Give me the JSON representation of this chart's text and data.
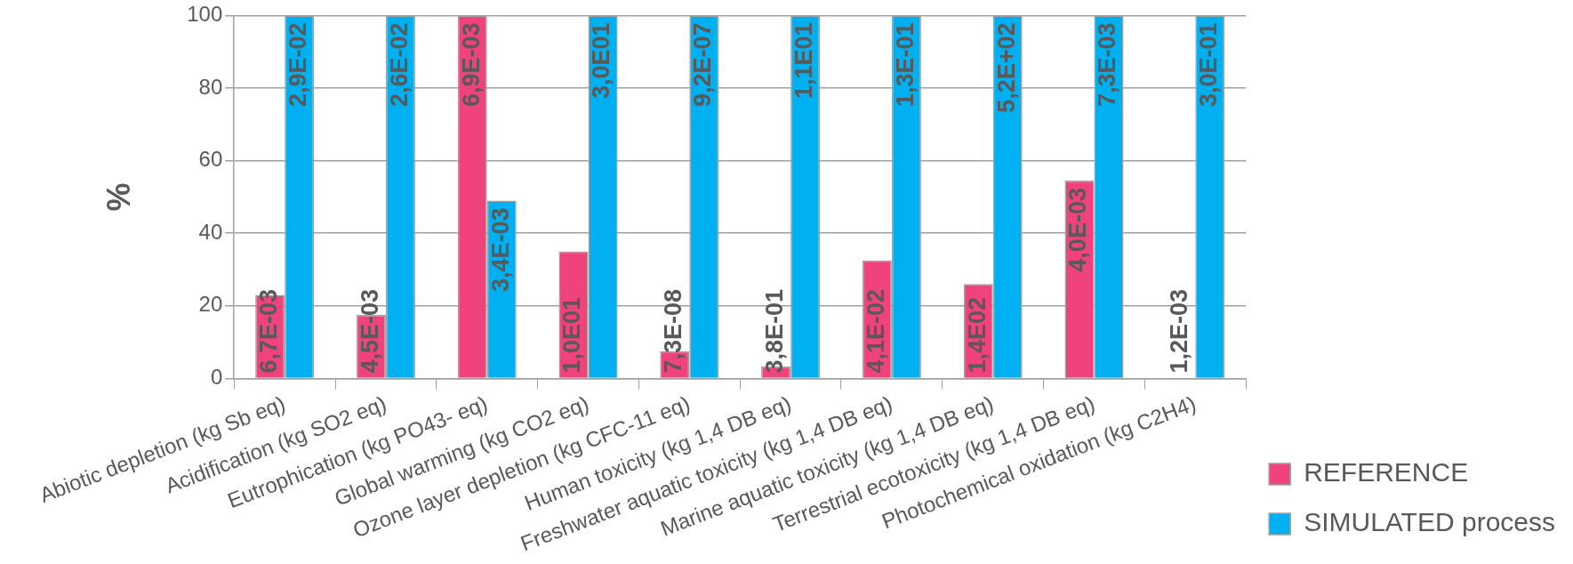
{
  "chart_data": {
    "type": "bar",
    "ylabel": "%",
    "categories": [
      "Abiotic depletion (kg Sb eq)",
      "Acidification (kg SO2 eq)",
      "Eutrophication (kg PO43- eq)",
      "Global warming (kg CO2 eq)",
      "Ozone layer depletion (kg CFC-11 eq)",
      "Human toxicity (kg 1,4 DB eq)",
      "Freshwater aquatic toxicity (kg 1,4 DB eq)",
      "Marine aquatic toxicity (kg 1,4 DB eq)",
      "Terrestrial ecotoxicity (kg 1,4 DB eq)",
      "Photochemical oxidation (kg C2H4)"
    ],
    "series": [
      {
        "name": "REFERENCE",
        "color": "#f0427d",
        "values": [
          23,
          17.5,
          100,
          35,
          7.5,
          3.3,
          32.5,
          26,
          54.5,
          0.2
        ]
      },
      {
        "name": "SIMULATED process",
        "color": "#00b0f0",
        "values": [
          100,
          100,
          49,
          100,
          100,
          100,
          100,
          100,
          100,
          100
        ]
      }
    ],
    "annotations": [
      {
        "text": "6,7E-03",
        "x": "Abiotic depletion (kg Sb eq)",
        "y": 23
      },
      {
        "text": "2,9E-02",
        "x": "Abiotic depletion (kg Sb eq)",
        "y": 100
      },
      {
        "text": "4,5E-03",
        "x": "Acidification (kg SO2 eq)",
        "y": 17.5
      },
      {
        "text": "2,6E-02",
        "x": "Acidification (kg SO2 eq)",
        "y": 100
      },
      {
        "text": "6,9E-03",
        "x": "Eutrophication (kg PO43- eq)",
        "y": 100
      },
      {
        "text": "3,4E-03",
        "x": "Eutrophication (kg PO43- eq)",
        "y": 49
      },
      {
        "text": "1,0E01",
        "x": "Global warming (kg CO2 eq)",
        "y": 35
      },
      {
        "text": "3,0E01",
        "x": "Global warming (kg CO2 eq)",
        "y": 100
      },
      {
        "text": "7,3E-08",
        "x": "Ozone layer depletion (kg CFC-11 eq)",
        "y": 7.5
      },
      {
        "text": "9,2E-07",
        "x": "Ozone layer depletion (kg CFC-11 eq)",
        "y": 100
      },
      {
        "text": "3,8E-01",
        "x": "Human toxicity (kg 1,4 DB eq)",
        "y": 3.3
      },
      {
        "text": "1,1E01",
        "x": "Human toxicity (kg 1,4 DB eq)",
        "y": 100
      },
      {
        "text": "4,1E-02",
        "x": "Freshwater aquatic toxicity (kg 1,4 DB eq)",
        "y": 32.5
      },
      {
        "text": "1,3E-01",
        "x": "Freshwater aquatic toxicity (kg 1,4 DB eq)",
        "y": 100
      },
      {
        "text": "1,4E02",
        "x": "Marine aquatic toxicity (kg 1,4 DB eq)",
        "y": 26
      },
      {
        "text": "5,2E+02",
        "x": "Marine aquatic toxicity (kg 1,4 DB eq)",
        "y": 100
      },
      {
        "text": "4,0E-03",
        "x": "Terrestrial ecotoxicity (kg 1,4 DB eq)",
        "y": 54.5
      },
      {
        "text": "7,3E-03",
        "x": "Terrestrial ecotoxicity (kg 1,4 DB eq)",
        "y": 100
      },
      {
        "text": "1,2E-03",
        "x": "Photochemical oxidation (kg C2H4)",
        "y": 0.2
      },
      {
        "text": "3,0E-01",
        "x": "Photochemical oxidation (kg C2H4)",
        "y": 100
      }
    ],
    "ylim": [
      0,
      100
    ],
    "yticks": [
      0,
      20,
      40,
      60,
      80,
      100
    ],
    "grid": "y",
    "legend": "bottom right"
  }
}
